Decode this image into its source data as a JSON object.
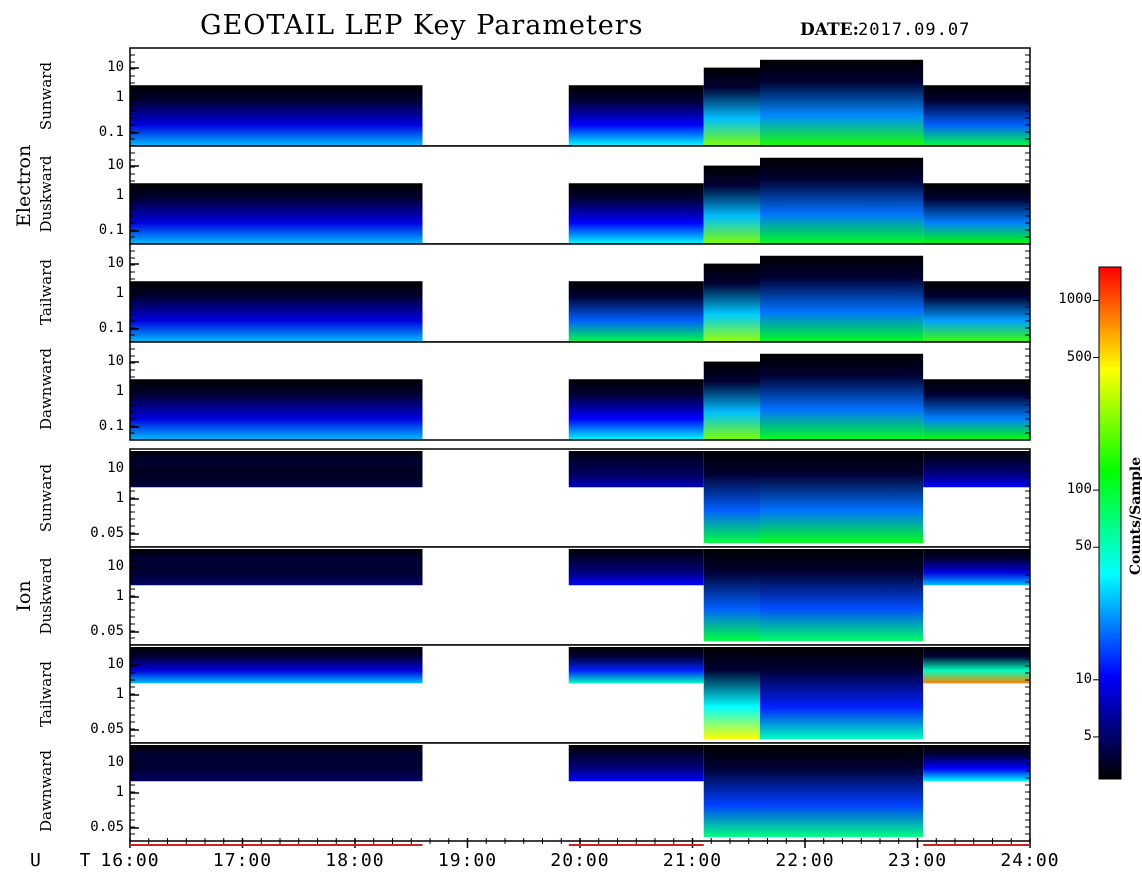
{
  "title": "GEOTAIL LEP Key Parameters",
  "date_label": "DATE:",
  "date_value": "2017.09.07",
  "chart_data": {
    "type": "heatmap",
    "x_label": "U T",
    "x_ticks": [
      "16:00",
      "17:00",
      "18:00",
      "19:00",
      "20:00",
      "21:00",
      "22:00",
      "23:00",
      "24:00"
    ],
    "x_range_hours": [
      16,
      24
    ],
    "data_gaps_hours": [
      [
        18.6,
        19.9
      ]
    ],
    "groups": [
      {
        "name": "Electron",
        "y_ticks": [
          "10",
          "1",
          "0.1"
        ],
        "panels": [
          {
            "name": "Sunward",
            "levels": [
              0.35,
              0.4,
              0.7,
              0.62,
              0.55
            ]
          },
          {
            "name": "Duskward",
            "levels": [
              0.35,
              0.4,
              0.7,
              0.58,
              0.6
            ]
          },
          {
            "name": "Tailward",
            "levels": [
              0.35,
              0.55,
              0.72,
              0.58,
              0.65
            ]
          },
          {
            "name": "Dawnward",
            "levels": [
              0.35,
              0.4,
              0.7,
              0.58,
              0.6
            ]
          }
        ]
      },
      {
        "name": "Ion",
        "y_ticks": [
          "10",
          "1",
          "0.05"
        ],
        "panels": [
          {
            "name": "Sunward",
            "levels": [
              0.05,
              0.15,
              0.55,
              0.58,
              0.2
            ]
          },
          {
            "name": "Duskward",
            "levels": [
              0.08,
              0.2,
              0.55,
              0.52,
              0.35
            ]
          },
          {
            "name": "Tailward",
            "levels": [
              0.35,
              0.45,
              0.8,
              0.45,
              0.9
            ]
          },
          {
            "name": "Dawnward",
            "levels": [
              0.08,
              0.2,
              0.5,
              0.5,
              0.4
            ]
          }
        ]
      }
    ],
    "colorbar": {
      "label": "Counts/Sample",
      "scale": "log",
      "range": [
        3,
        1500
      ],
      "ticks": [
        5,
        10,
        50,
        100,
        500,
        1000
      ],
      "colors": [
        "#000000",
        "#0000ff",
        "#00ffff",
        "#00ff00",
        "#ffff00",
        "#ff0000"
      ]
    }
  }
}
